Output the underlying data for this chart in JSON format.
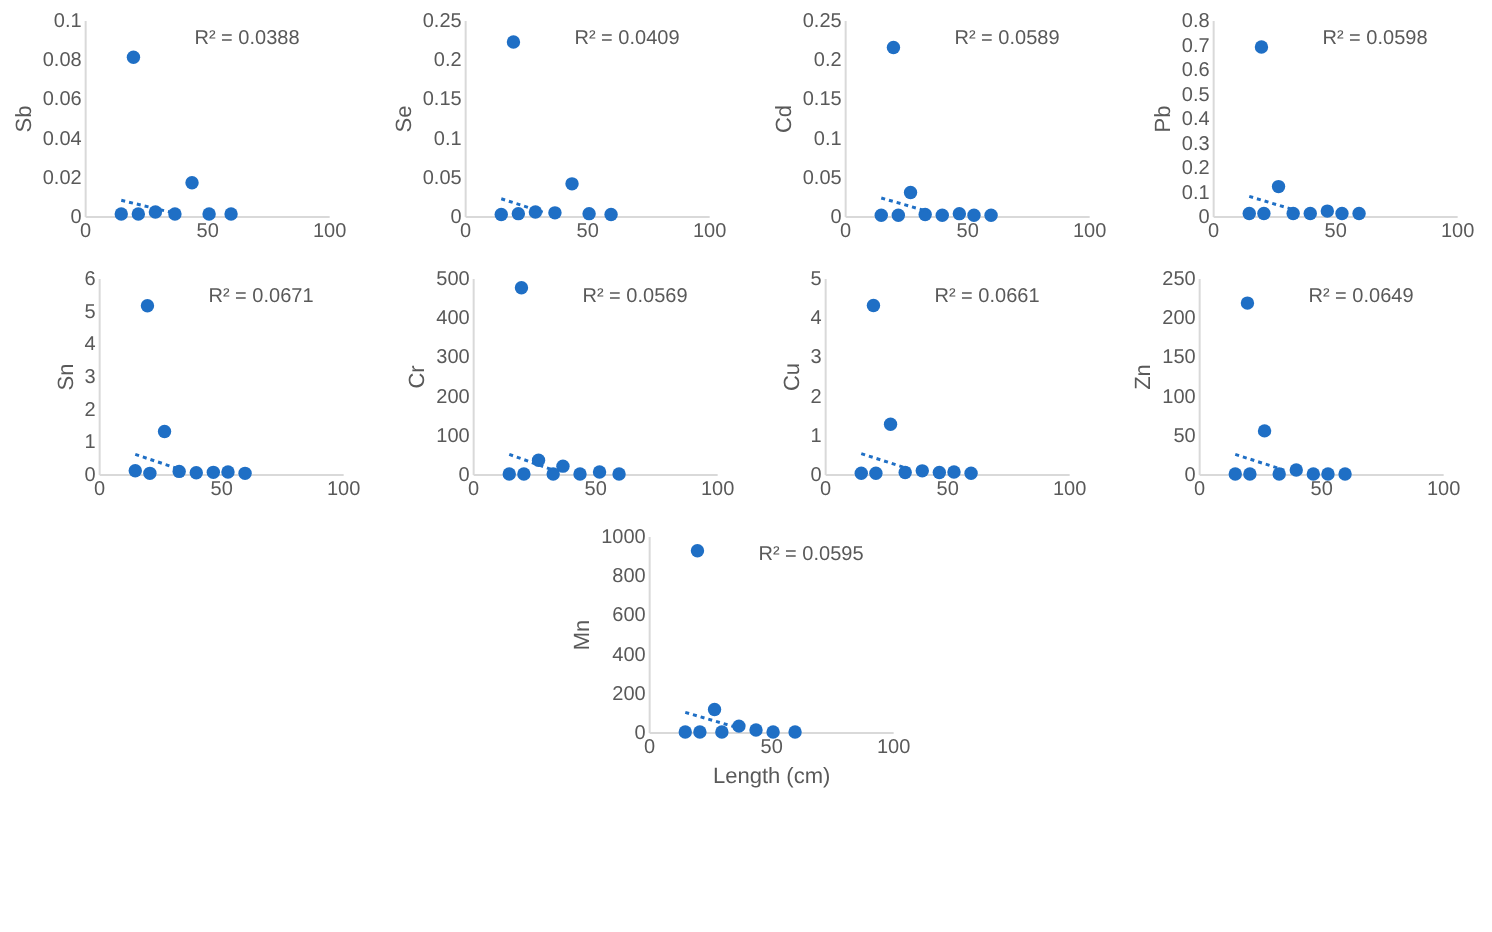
{
  "chart_data": [
    {
      "type": "scatter",
      "ylabel": "Sb",
      "annotations": [
        "R² = 0.0388"
      ],
      "xlim": [
        0,
        100
      ],
      "xticks": [
        0,
        50,
        100
      ],
      "ylim": [
        0,
        0.1
      ],
      "yticks": [
        0,
        0.02,
        0.04,
        0.06,
        0.08,
        0.1
      ],
      "marker": "circle",
      "series": [
        {
          "color": "#1f6fc5",
          "x": [
            15,
            20,
            22,
            29,
            37,
            44,
            51,
            60
          ],
          "values": [
            0.001,
            0.081,
            0.001,
            0.002,
            0.001,
            0.017,
            0.001,
            0.001
          ]
        },
        {
          "type": "line",
          "marker": "none",
          "line_style": "dotted",
          "color": "#1f6fc5",
          "x": [
            15,
            35
          ],
          "values": [
            0.008,
            0.002
          ]
        }
      ]
    },
    {
      "type": "scatter",
      "ylabel": "Se",
      "annotations": [
        "R² = 0.0409"
      ],
      "xlim": [
        0,
        100
      ],
      "xticks": [
        0,
        50,
        100
      ],
      "ylim": [
        0,
        0.25
      ],
      "yticks": [
        0,
        0.05,
        0.1,
        0.15,
        0.2,
        0.25
      ],
      "marker": "circle",
      "series": [
        {
          "color": "#1f6fc5",
          "x": [
            15,
            20,
            22,
            29,
            37,
            44,
            51,
            60
          ],
          "values": [
            0.002,
            0.222,
            0.003,
            0.005,
            0.004,
            0.041,
            0.003,
            0.002
          ]
        },
        {
          "type": "line",
          "marker": "none",
          "line_style": "dotted",
          "color": "#1f6fc5",
          "x": [
            15,
            32
          ],
          "values": [
            0.022,
            0.005
          ]
        }
      ]
    },
    {
      "type": "scatter",
      "ylabel": "Cd",
      "annotations": [
        "R² = 0.0589"
      ],
      "xlim": [
        0,
        100
      ],
      "xticks": [
        0,
        50,
        100
      ],
      "ylim": [
        0,
        0.25
      ],
      "yticks": [
        0,
        0.05,
        0.1,
        0.15,
        0.2,
        0.25
      ],
      "marker": "circle",
      "series": [
        {
          "color": "#1f6fc5",
          "x": [
            15,
            20,
            22,
            27,
            33,
            40,
            47,
            53,
            60
          ],
          "values": [
            0.001,
            0.215,
            0.001,
            0.03,
            0.002,
            0.001,
            0.003,
            0.001,
            0.001
          ]
        },
        {
          "type": "line",
          "marker": "none",
          "line_style": "dotted",
          "color": "#1f6fc5",
          "x": [
            15,
            35
          ],
          "values": [
            0.023,
            0.005
          ]
        }
      ]
    },
    {
      "type": "scatter",
      "ylabel": "Pb",
      "annotations": [
        "R² = 0.0598"
      ],
      "xlim": [
        0,
        100
      ],
      "xticks": [
        0,
        50,
        100
      ],
      "ylim": [
        0,
        0.8
      ],
      "yticks": [
        0,
        0.1,
        0.2,
        0.3,
        0.4,
        0.5,
        0.6,
        0.7,
        0.8
      ],
      "marker": "circle",
      "series": [
        {
          "color": "#1f6fc5",
          "x": [
            15,
            20,
            21,
            27,
            33,
            40,
            47,
            53,
            60
          ],
          "values": [
            0.01,
            0.69,
            0.01,
            0.12,
            0.01,
            0.01,
            0.02,
            0.01,
            0.01
          ]
        },
        {
          "type": "line",
          "marker": "none",
          "line_style": "dotted",
          "color": "#1f6fc5",
          "x": [
            15,
            35
          ],
          "values": [
            0.08,
            0.02
          ]
        }
      ]
    },
    {
      "type": "scatter",
      "ylabel": "Sn",
      "annotations": [
        "R² = 0.0671"
      ],
      "xlim": [
        0,
        100
      ],
      "xticks": [
        0,
        50,
        100
      ],
      "ylim": [
        0,
        6
      ],
      "yticks": [
        0,
        1,
        2,
        3,
        4,
        5,
        6
      ],
      "marker": "circle",
      "series": [
        {
          "color": "#1f6fc5",
          "x": [
            15,
            20,
            21,
            27,
            33,
            40,
            47,
            53,
            60
          ],
          "values": [
            0.1,
            5.15,
            0.02,
            1.3,
            0.08,
            0.04,
            0.05,
            0.06,
            0.02
          ]
        },
        {
          "type": "line",
          "marker": "none",
          "line_style": "dotted",
          "color": "#1f6fc5",
          "x": [
            15,
            33
          ],
          "values": [
            0.6,
            0.15
          ]
        }
      ]
    },
    {
      "type": "scatter",
      "ylabel": "Cr",
      "annotations": [
        "R² = 0.0569"
      ],
      "xlim": [
        0,
        100
      ],
      "xticks": [
        0,
        50,
        100
      ],
      "ylim": [
        0,
        500
      ],
      "yticks": [
        0,
        100,
        200,
        300,
        400,
        500
      ],
      "marker": "circle",
      "series": [
        {
          "color": "#1f6fc5",
          "x": [
            15,
            20,
            21,
            27,
            33,
            37,
            44,
            52,
            60
          ],
          "values": [
            0,
            475,
            0,
            35,
            0,
            20,
            0,
            5,
            0
          ]
        },
        {
          "type": "line",
          "marker": "none",
          "line_style": "dotted",
          "color": "#1f6fc5",
          "x": [
            15,
            33
          ],
          "values": [
            50,
            10
          ]
        }
      ]
    },
    {
      "type": "scatter",
      "ylabel": "Cu",
      "annotations": [
        "R² = 0.0661"
      ],
      "xlim": [
        0,
        100
      ],
      "xticks": [
        0,
        50,
        100
      ],
      "ylim": [
        0,
        5
      ],
      "yticks": [
        0,
        1,
        2,
        3,
        4,
        5
      ],
      "marker": "circle",
      "series": [
        {
          "color": "#1f6fc5",
          "x": [
            15,
            20,
            21,
            27,
            33,
            40,
            47,
            53,
            60
          ],
          "values": [
            0.02,
            4.3,
            0.02,
            1.27,
            0.04,
            0.08,
            0.04,
            0.05,
            0.02
          ]
        },
        {
          "type": "line",
          "marker": "none",
          "line_style": "dotted",
          "color": "#1f6fc5",
          "x": [
            15,
            35
          ],
          "values": [
            0.52,
            0.12
          ]
        }
      ]
    },
    {
      "type": "scatter",
      "ylabel": "Zn",
      "annotations": [
        "R² = 0.0649"
      ],
      "xlim": [
        0,
        100
      ],
      "xticks": [
        0,
        50,
        100
      ],
      "ylim": [
        0,
        250
      ],
      "yticks": [
        0,
        50,
        100,
        150,
        200,
        250
      ],
      "marker": "circle",
      "series": [
        {
          "color": "#1f6fc5",
          "x": [
            15,
            20,
            21,
            27,
            33,
            40,
            47,
            53,
            60
          ],
          "values": [
            0,
            218,
            0,
            55,
            0,
            5,
            0,
            0,
            0
          ]
        },
        {
          "type": "line",
          "marker": "none",
          "line_style": "dotted",
          "color": "#1f6fc5",
          "x": [
            15,
            35
          ],
          "values": [
            25,
            5
          ]
        }
      ]
    },
    {
      "type": "scatter",
      "ylabel": "Mn",
      "xlabel": "Length (cm)",
      "annotations": [
        "R² = 0.0595"
      ],
      "xlim": [
        0,
        100
      ],
      "xticks": [
        0,
        50,
        100
      ],
      "ylim": [
        0,
        1000
      ],
      "yticks": [
        0,
        200,
        400,
        600,
        800,
        1000
      ],
      "marker": "circle",
      "series": [
        {
          "color": "#1f6fc5",
          "x": [
            15,
            20,
            21,
            27,
            30,
            37,
            44,
            51,
            60
          ],
          "values": [
            0,
            925,
            0,
            115,
            0,
            30,
            10,
            0,
            0
          ]
        },
        {
          "type": "line",
          "marker": "none",
          "line_style": "dotted",
          "color": "#1f6fc5",
          "x": [
            15,
            37
          ],
          "values": [
            100,
            20
          ]
        }
      ]
    }
  ]
}
